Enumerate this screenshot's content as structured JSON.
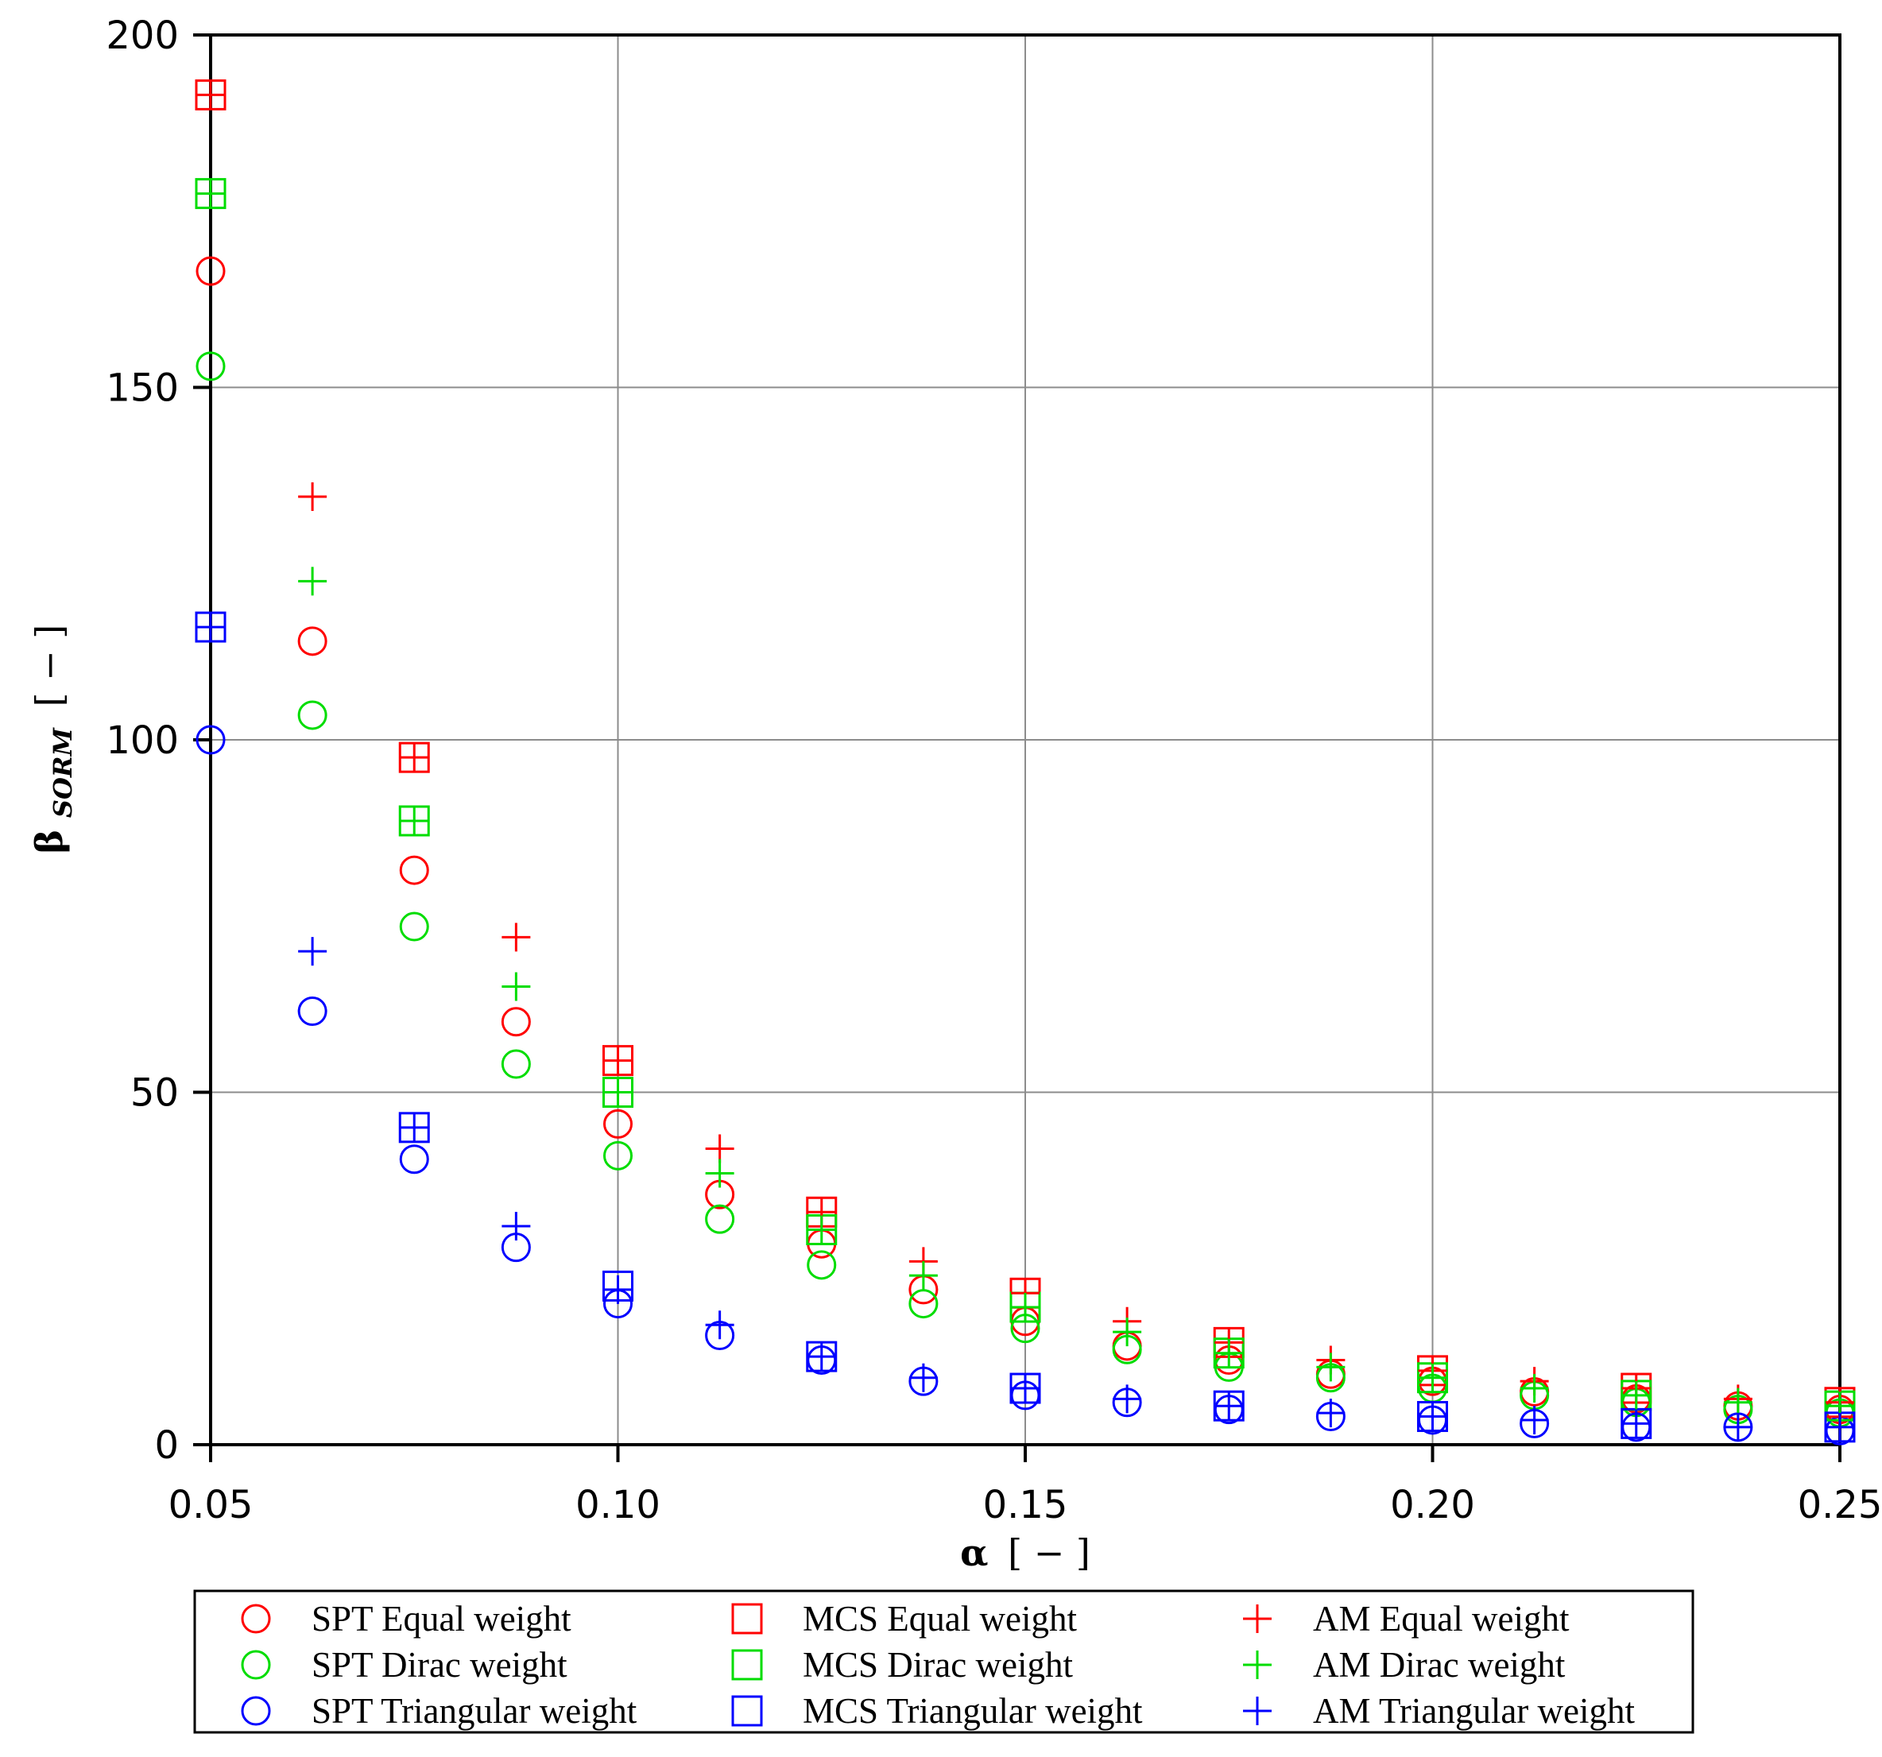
{
  "chart_data": {
    "type": "scatter",
    "xlabel": {
      "symbol": "α",
      "unit": "[ − ]"
    },
    "ylabel": {
      "symbol": "β",
      "subscript": "SORM",
      "unit": "[ − ]"
    },
    "xlim": [
      0.05,
      0.25
    ],
    "ylim": [
      0,
      200
    ],
    "xticks": [
      0.05,
      0.1,
      0.15,
      0.2,
      0.25
    ],
    "xtick_labels": [
      "0.05",
      "0.10",
      "0.15",
      "0.20",
      "0.25"
    ],
    "yticks": [
      0,
      50,
      100,
      150,
      200
    ],
    "ytick_labels": [
      "0",
      "50",
      "100",
      "150",
      "200"
    ],
    "grid": true,
    "legend_position": "bottom",
    "colors": {
      "equal": "#ff0000",
      "dirac": "#00dd00",
      "triangular": "#0000ff"
    },
    "series": [
      {
        "name": "SPT Equal weight",
        "marker": "circle",
        "color": "#ff0000",
        "x": [
          0.05,
          0.0625,
          0.075,
          0.0875,
          0.1,
          0.1125,
          0.125,
          0.1375,
          0.15,
          0.1625,
          0.175,
          0.1875,
          0.2,
          0.2125,
          0.225,
          0.2375,
          0.25
        ],
        "y": [
          166.5,
          114,
          81.5,
          60,
          45.5,
          35.5,
          28.5,
          22,
          17.5,
          14,
          12,
          10,
          9,
          7.5,
          6.5,
          5.5,
          5
        ]
      },
      {
        "name": "SPT Dirac weight",
        "marker": "circle",
        "color": "#00dd00",
        "x": [
          0.05,
          0.0625,
          0.075,
          0.0875,
          0.1,
          0.1125,
          0.125,
          0.1375,
          0.15,
          0.1625,
          0.175,
          0.1875,
          0.2,
          0.2125,
          0.225,
          0.2375,
          0.25
        ],
        "y": [
          153,
          103.5,
          73.5,
          54,
          41,
          32,
          25.5,
          20,
          16.5,
          13.5,
          11,
          9.5,
          8,
          7,
          6,
          5,
          4.5
        ]
      },
      {
        "name": "SPT Triangular weight",
        "marker": "circle",
        "color": "#0000ff",
        "x": [
          0.05,
          0.0625,
          0.075,
          0.0875,
          0.1,
          0.1125,
          0.125,
          0.1375,
          0.15,
          0.1625,
          0.175,
          0.1875,
          0.2,
          0.2125,
          0.225,
          0.2375,
          0.25
        ],
        "y": [
          100,
          61.5,
          40.5,
          28,
          20,
          15.5,
          12,
          9,
          7,
          6,
          5,
          4,
          3.5,
          3,
          2.5,
          2.5,
          2
        ]
      },
      {
        "name": "MCS Equal weight",
        "marker": "square",
        "color": "#ff0000",
        "x": [
          0.05,
          0.075,
          0.1,
          0.125,
          0.15,
          0.175,
          0.2,
          0.225,
          0.25
        ],
        "y": [
          191.5,
          97.5,
          54.5,
          33,
          21.5,
          14.5,
          10.5,
          8,
          6
        ]
      },
      {
        "name": "MCS Dirac weight",
        "marker": "square",
        "color": "#00dd00",
        "x": [
          0.05,
          0.075,
          0.1,
          0.125,
          0.15,
          0.175,
          0.2,
          0.225,
          0.25
        ],
        "y": [
          177.5,
          88.5,
          50,
          30.5,
          19.5,
          13,
          9.5,
          7,
          5.5
        ]
      },
      {
        "name": "MCS Triangular weight",
        "marker": "square",
        "color": "#0000ff",
        "x": [
          0.05,
          0.075,
          0.1,
          0.125,
          0.15,
          0.175,
          0.2,
          0.225,
          0.25
        ],
        "y": [
          116,
          45,
          22.5,
          12.5,
          8,
          5.5,
          4,
          3,
          2.5
        ]
      },
      {
        "name": "AM Equal weight",
        "marker": "plus",
        "color": "#ff0000",
        "x": [
          0.05,
          0.0625,
          0.075,
          0.0875,
          0.1,
          0.1125,
          0.125,
          0.1375,
          0.15,
          0.1625,
          0.175,
          0.1875,
          0.2,
          0.2125,
          0.225,
          0.2375,
          0.25
        ],
        "y": [
          191.5,
          134.5,
          97.5,
          72,
          54.5,
          42,
          33,
          26,
          21.5,
          17.5,
          14.5,
          12,
          10.5,
          9,
          8,
          6.5,
          6
        ]
      },
      {
        "name": "AM Dirac weight",
        "marker": "plus",
        "color": "#00dd00",
        "x": [
          0.05,
          0.0625,
          0.075,
          0.0875,
          0.1,
          0.1125,
          0.125,
          0.1375,
          0.15,
          0.1625,
          0.175,
          0.1875,
          0.2,
          0.2125,
          0.225,
          0.2375,
          0.25
        ],
        "y": [
          177.5,
          122.5,
          88.5,
          65,
          50,
          38.5,
          30.5,
          24,
          19.5,
          16,
          13,
          11,
          9.5,
          8,
          7,
          6,
          5.5
        ]
      },
      {
        "name": "AM Triangular weight",
        "marker": "plus",
        "color": "#0000ff",
        "x": [
          0.05,
          0.0625,
          0.075,
          0.0875,
          0.1,
          0.1125,
          0.125,
          0.1375,
          0.15,
          0.1625,
          0.175,
          0.1875,
          0.2,
          0.2125,
          0.225,
          0.2375,
          0.25
        ],
        "y": [
          116,
          70,
          45,
          31,
          22,
          17,
          12.5,
          9.5,
          8,
          6.5,
          5.5,
          4.5,
          4,
          3.5,
          3,
          2.5,
          2.5
        ]
      }
    ]
  }
}
